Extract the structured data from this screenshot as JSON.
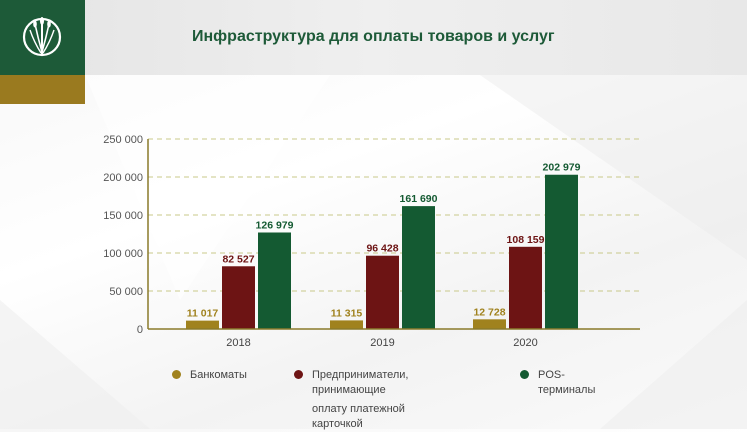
{
  "header": {
    "title": "Инфраструктура для оплаты товаров и услуг",
    "logo_icon": "wheat-emblem-icon"
  },
  "colors": {
    "brand_green": "#1d5a38",
    "gold": "#9a7a1f",
    "atm": "#a0821e",
    "merchants": "#6d1414",
    "pos": "#145a32"
  },
  "chart_data": {
    "type": "bar",
    "categories": [
      "2018",
      "2019",
      "2020"
    ],
    "series": [
      {
        "name": "Банкоматы",
        "values": [
          11017,
          11315,
          12728
        ],
        "labels": [
          "11 017",
          "11 315",
          "12 728"
        ]
      },
      {
        "name": "Предприниматели, принимающие оплату платежной карточкой",
        "values": [
          82527,
          96428,
          108159
        ],
        "labels": [
          "82 527",
          "96 428",
          "108 159"
        ]
      },
      {
        "name": "POS-терминалы",
        "values": [
          126979,
          161690,
          202979
        ],
        "labels": [
          "126 979",
          "161 690",
          "202 979"
        ]
      }
    ],
    "y_ticks": [
      "0",
      "50 000",
      "100 000",
      "150 000",
      "200 000",
      "250 000"
    ],
    "ylim": [
      0,
      250000
    ],
    "grid": true,
    "legend_position": "bottom"
  },
  "legend": {
    "atm": "Банкоматы",
    "merchants_line1": "Предприниматели, принимающие",
    "merchants_line2": "оплату платежной карточкой",
    "pos": "POS-терминалы"
  }
}
